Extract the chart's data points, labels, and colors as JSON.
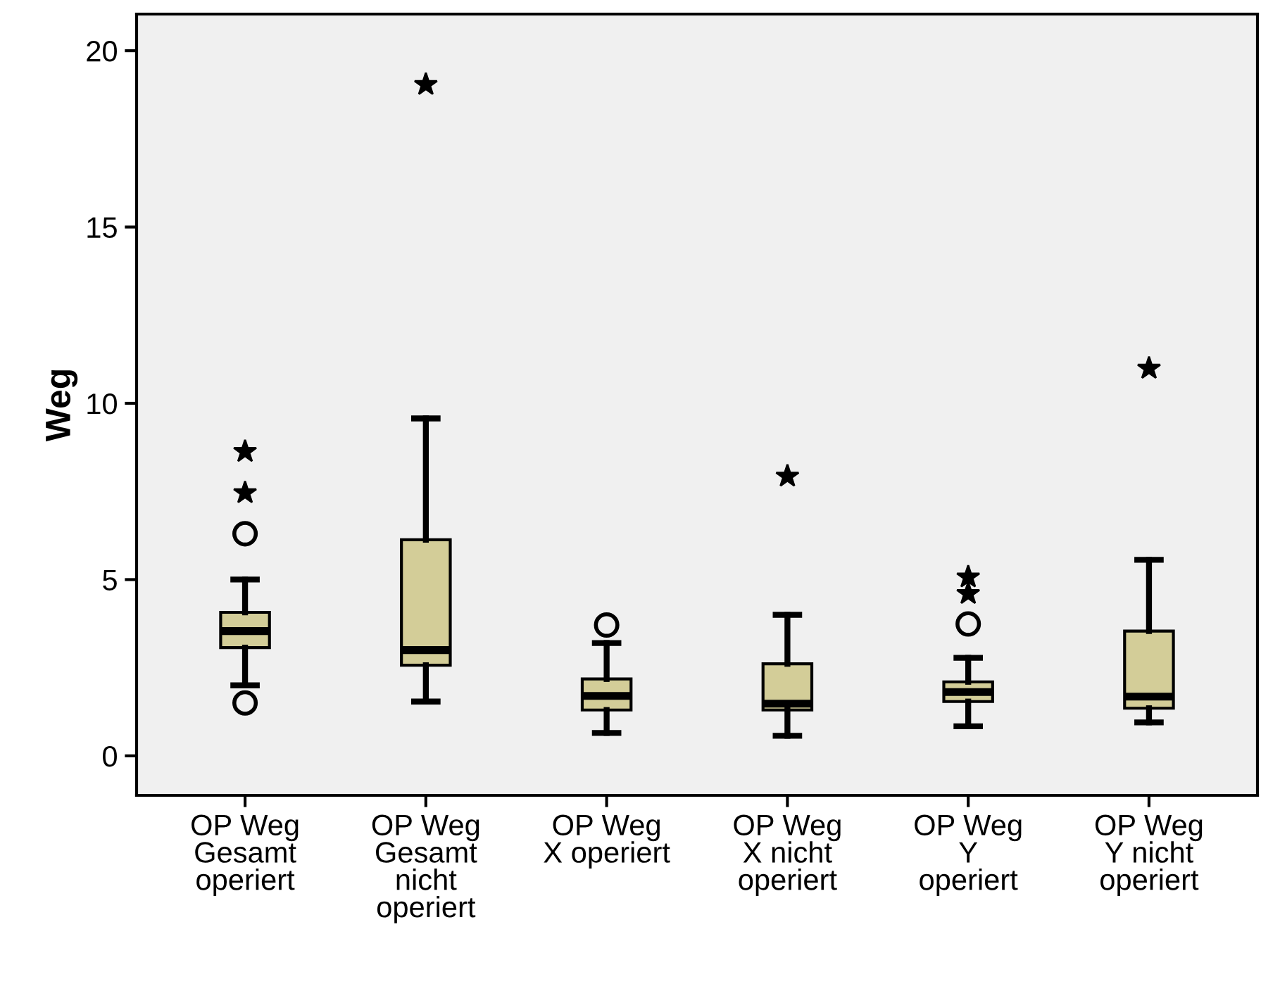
{
  "chart_data": {
    "type": "box",
    "ylabel": "Weg",
    "categories": [
      "OP Weg\nGesamt\noperiert",
      "OP Weg\nGesamt\nnicht\noperiert",
      "OP Weg\nX operiert",
      "OP Weg\nX nicht\noperiert",
      "OP Weg\nY\noperiert",
      "OP Weg\nY nicht\noperiert"
    ],
    "color": "#d3cd98",
    "boxes": [
      {
        "low": 2.0,
        "q1": 3.07,
        "median": 3.54,
        "q3": 4.07,
        "high": 5.0,
        "outliers": [
          1.5,
          6.3,
          7.46,
          8.63
        ]
      },
      {
        "low": 1.54,
        "q1": 2.57,
        "median": 3.0,
        "q3": 6.13,
        "high": 9.57,
        "outliers": [
          19.04
        ]
      },
      {
        "low": 0.65,
        "q1": 1.3,
        "median": 1.7,
        "q3": 2.18,
        "high": 3.2,
        "outliers": [
          3.71
        ]
      },
      {
        "low": 0.57,
        "q1": 1.3,
        "median": 1.48,
        "q3": 2.61,
        "high": 4.0,
        "outliers": [
          7.93
        ]
      },
      {
        "low": 0.84,
        "q1": 1.54,
        "median": 1.81,
        "q3": 2.1,
        "high": 2.78,
        "outliers": [
          3.74,
          4.6,
          5.07
        ]
      },
      {
        "low": 0.95,
        "q1": 1.35,
        "median": 1.68,
        "q3": 3.54,
        "high": 5.56,
        "outliers": [
          10.99
        ]
      }
    ],
    "ylim": [
      -1.12,
      21.04
    ],
    "yticks": [
      0,
      5,
      10,
      15,
      20
    ],
    "grid": false
  }
}
